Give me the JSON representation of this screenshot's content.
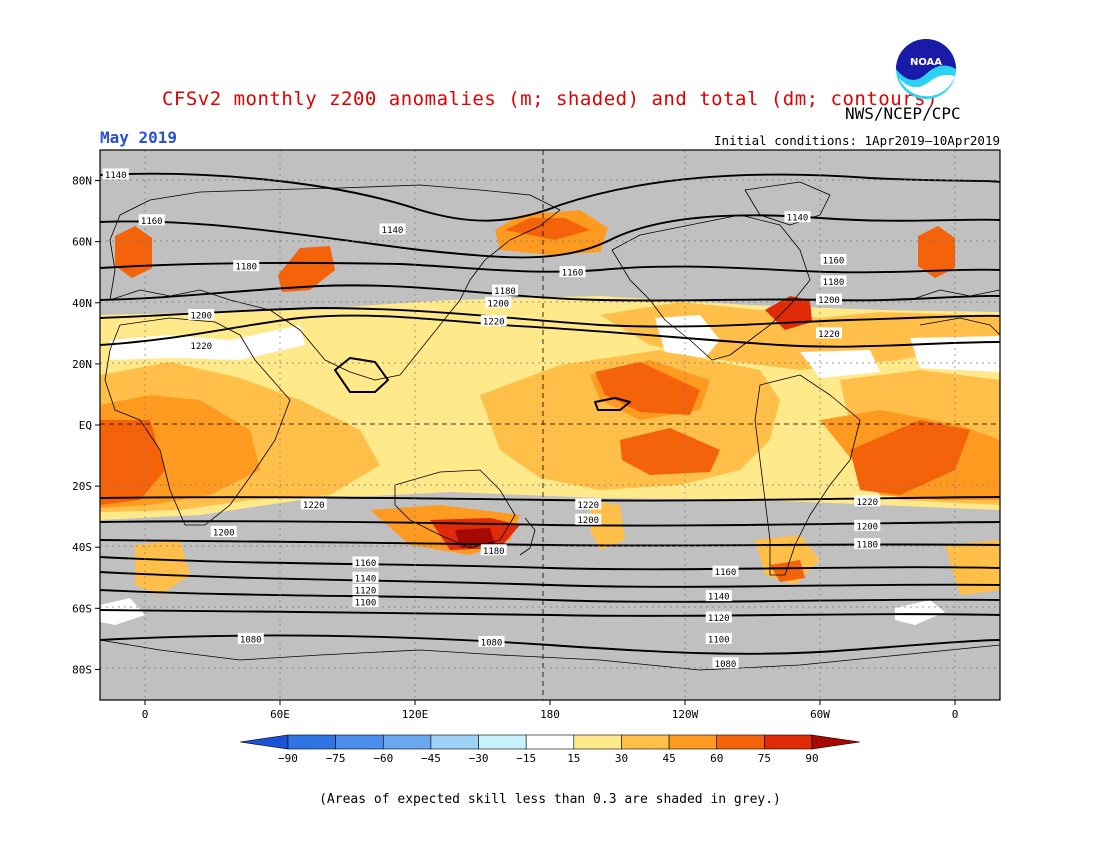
{
  "header": {
    "title": "CFSv2 monthly z200 anomalies (m; shaded) and total (dm; contours)",
    "agency": "NWS/NCEP/CPC",
    "period": "May 2019",
    "initial_conditions": "Initial conditions: 1Apr2019–10Apr2019",
    "logo_text": "NOAA"
  },
  "map": {
    "projection": "cylindrical equidistant",
    "lon_range": [
      -20,
      380
    ],
    "lat_range": [
      -90,
      90
    ],
    "lat_ticks": [
      {
        "lat": 80,
        "label": "80N"
      },
      {
        "lat": 60,
        "label": "60N"
      },
      {
        "lat": 40,
        "label": "40N"
      },
      {
        "lat": 20,
        "label": "20N"
      },
      {
        "lat": 0,
        "label": "EQ"
      },
      {
        "lat": -20,
        "label": "20S"
      },
      {
        "lat": -40,
        "label": "40S"
      },
      {
        "lat": -60,
        "label": "60S"
      },
      {
        "lat": -80,
        "label": "80S"
      }
    ],
    "lon_ticks": [
      {
        "lon": 0,
        "label": "0"
      },
      {
        "lon": 60,
        "label": "60E"
      },
      {
        "lon": 120,
        "label": "120E"
      },
      {
        "lon": 180,
        "label": "180"
      },
      {
        "lon": 240,
        "label": "120W"
      },
      {
        "lon": 300,
        "label": "60W"
      },
      {
        "lon": 360,
        "label": "0"
      }
    ],
    "colors": {
      "grey": "#c0c0c0",
      "white": "#ffffff",
      "c15": "#ffe98a",
      "c30": "#ffbf48",
      "c45": "#ff9a20",
      "c60": "#f4620a",
      "c75": "#e02a08",
      "c90": "#a50a02",
      "land": "#ffffff"
    },
    "contour_labels": [
      {
        "text": "1140",
        "lon": -13,
        "lat": 82
      },
      {
        "text": "1160",
        "lon": 3,
        "lat": 67
      },
      {
        "text": "1140",
        "lon": 110,
        "lat": 64
      },
      {
        "text": "1180",
        "lon": 45,
        "lat": 52
      },
      {
        "text": "1200",
        "lon": 25,
        "lat": 36
      },
      {
        "text": "1220",
        "lon": 25,
        "lat": 26
      },
      {
        "text": "1180",
        "lon": 160,
        "lat": 44
      },
      {
        "text": "1200",
        "lon": 157,
        "lat": 40
      },
      {
        "text": "1220",
        "lon": 155,
        "lat": 34
      },
      {
        "text": "1160",
        "lon": 190,
        "lat": 50
      },
      {
        "text": "1140",
        "lon": 290,
        "lat": 68
      },
      {
        "text": "1160",
        "lon": 306,
        "lat": 54
      },
      {
        "text": "1180",
        "lon": 306,
        "lat": 47
      },
      {
        "text": "1200",
        "lon": 304,
        "lat": 41
      },
      {
        "text": "1220",
        "lon": 304,
        "lat": 30
      },
      {
        "text": "1220",
        "lon": 75,
        "lat": -26
      },
      {
        "text": "1200",
        "lon": 35,
        "lat": -35
      },
      {
        "text": "1180",
        "lon": 155,
        "lat": -41
      },
      {
        "text": "1160",
        "lon": 98,
        "lat": -45
      },
      {
        "text": "1140",
        "lon": 98,
        "lat": -50
      },
      {
        "text": "1120",
        "lon": 98,
        "lat": -54
      },
      {
        "text": "1100",
        "lon": 98,
        "lat": -58
      },
      {
        "text": "1080",
        "lon": 47,
        "lat": -70
      },
      {
        "text": "1080",
        "lon": 154,
        "lat": -71
      },
      {
        "text": "1220",
        "lon": 197,
        "lat": -26
      },
      {
        "text": "1200",
        "lon": 197,
        "lat": -31
      },
      {
        "text": "1160",
        "lon": 258,
        "lat": -48
      },
      {
        "text": "1140",
        "lon": 255,
        "lat": -56
      },
      {
        "text": "1120",
        "lon": 255,
        "lat": -63
      },
      {
        "text": "1100",
        "lon": 255,
        "lat": -70
      },
      {
        "text": "1080",
        "lon": 258,
        "lat": -78
      },
      {
        "text": "1220",
        "lon": 321,
        "lat": -25
      },
      {
        "text": "1200",
        "lon": 321,
        "lat": -33
      },
      {
        "text": "1180",
        "lon": 321,
        "lat": -39
      }
    ]
  },
  "colorbar": {
    "ticks": [
      "−90",
      "−75",
      "−60",
      "−45",
      "−30",
      "−15",
      "15",
      "30",
      "45",
      "60",
      "75",
      "90"
    ],
    "colors": [
      "#1a52d9",
      "#2e75e6",
      "#4a8fee",
      "#6aa9f2",
      "#9dd1f6",
      "#c8f2fb",
      "#ffffff",
      "#ffe98a",
      "#ffbf48",
      "#ff9a20",
      "#f4620a",
      "#e02a08",
      "#a50a02"
    ]
  },
  "footnote": "(Areas of expected skill less than 0.3 are shaded in grey.)"
}
